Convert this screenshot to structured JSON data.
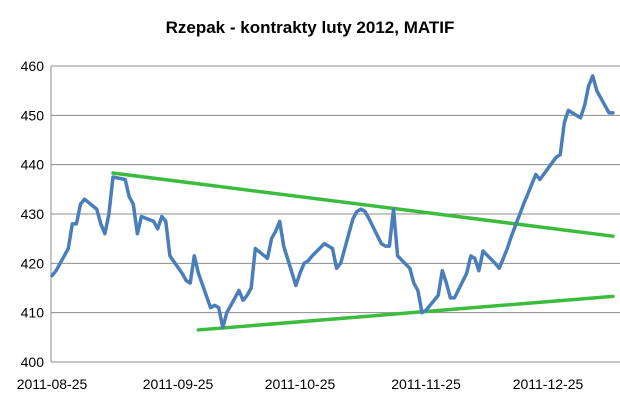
{
  "chart_data": {
    "type": "line",
    "title": "Rzepak - kontrakty luty 2012, MATIF",
    "xlabel": "",
    "ylabel": "",
    "ylim": [
      400,
      460
    ],
    "y_ticks": [
      400,
      410,
      420,
      430,
      440,
      450,
      460
    ],
    "x_ticks": [
      "2011-08-25",
      "2011-09-25",
      "2011-10-25",
      "2011-11-25",
      "2011-12-25"
    ],
    "grid": "horizontal",
    "legend": "none",
    "series": [
      {
        "color": "#4a7ebb",
        "x": [
          "2011-08-25",
          "2011-08-26",
          "2011-08-29",
          "2011-08-30",
          "2011-08-31",
          "2011-09-01",
          "2011-09-02",
          "2011-09-05",
          "2011-09-06",
          "2011-09-07",
          "2011-09-08",
          "2011-09-09",
          "2011-09-12",
          "2011-09-13",
          "2011-09-14",
          "2011-09-15",
          "2011-09-16",
          "2011-09-19",
          "2011-09-20",
          "2011-09-21",
          "2011-09-22",
          "2011-09-23",
          "2011-09-26",
          "2011-09-27",
          "2011-09-28",
          "2011-09-29",
          "2011-09-30",
          "2011-10-03",
          "2011-10-04",
          "2011-10-05",
          "2011-10-06",
          "2011-10-07",
          "2011-10-10",
          "2011-10-11",
          "2011-10-12",
          "2011-10-13",
          "2011-10-14",
          "2011-10-17",
          "2011-10-18",
          "2011-10-19",
          "2011-10-20",
          "2011-10-21",
          "2011-10-24",
          "2011-10-25",
          "2011-10-26",
          "2011-10-27",
          "2011-10-28",
          "2011-10-31",
          "2011-11-01",
          "2011-11-02",
          "2011-11-03",
          "2011-11-04",
          "2011-11-07",
          "2011-11-08",
          "2011-11-09",
          "2011-11-10",
          "2011-11-11",
          "2011-11-14",
          "2011-11-15",
          "2011-11-16",
          "2011-11-17",
          "2011-11-18",
          "2011-11-21",
          "2011-11-22",
          "2011-11-23",
          "2011-11-24",
          "2011-11-25",
          "2011-11-28",
          "2011-11-29",
          "2011-11-30",
          "2011-12-01",
          "2011-12-02",
          "2011-12-05",
          "2011-12-06",
          "2011-12-07",
          "2011-12-08",
          "2011-12-09",
          "2011-12-12",
          "2011-12-13",
          "2011-12-14",
          "2011-12-15",
          "2011-12-16",
          "2011-12-19",
          "2011-12-20",
          "2011-12-21",
          "2011-12-22",
          "2011-12-23",
          "2011-12-27",
          "2011-12-28",
          "2011-12-29",
          "2011-12-30",
          "2012-01-02",
          "2012-01-03",
          "2012-01-04",
          "2012-01-05",
          "2012-01-06",
          "2012-01-09",
          "2012-01-10"
        ],
        "y": [
          417.5,
          418.5,
          423,
          428,
          428,
          432,
          433,
          431,
          428,
          426,
          430,
          437.5,
          437,
          433.5,
          432,
          426,
          429.5,
          428.5,
          427,
          429.5,
          428.5,
          421.5,
          418,
          416.5,
          416,
          421.5,
          418,
          411,
          411.5,
          411,
          407,
          410,
          414.5,
          412.5,
          413.5,
          415,
          423,
          421,
          425,
          426.5,
          428.5,
          423.5,
          415.5,
          418,
          420,
          420.5,
          421.5,
          424,
          423.5,
          423,
          419,
          420,
          429,
          430.5,
          431,
          430.5,
          429,
          424,
          423.5,
          423.5,
          431,
          421.5,
          419,
          416,
          414.5,
          410,
          410.5,
          413.5,
          418.5,
          416,
          413,
          413,
          418,
          421.5,
          421,
          418.5,
          422.5,
          420,
          419,
          421,
          423,
          425.5,
          432,
          434,
          436,
          438,
          437,
          441.5,
          442,
          448.5,
          451,
          449.5,
          452,
          456,
          458,
          455,
          450.5,
          450.5
        ]
      }
    ],
    "trendlines": [
      {
        "color": "#3cbc3c",
        "from": {
          "x": "2011-09-09",
          "y": 438.3
        },
        "to": {
          "x": "2012-01-10",
          "y": 425.5
        }
      },
      {
        "color": "#3cbc3c",
        "from": {
          "x": "2011-09-30",
          "y": 406.5
        },
        "to": {
          "x": "2012-01-10",
          "y": 413.3
        }
      }
    ]
  }
}
